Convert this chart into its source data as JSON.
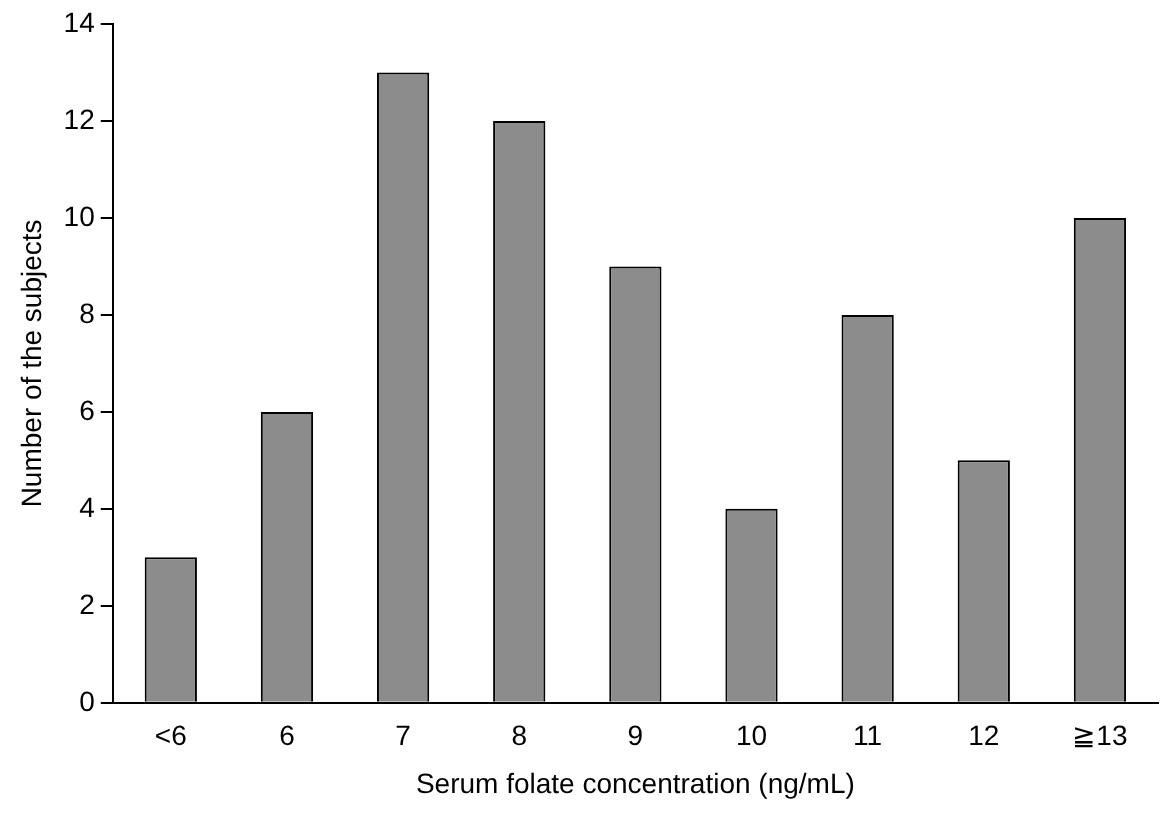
{
  "chart_data": {
    "type": "bar",
    "xlabel": "Serum folate concentration (ng/mL)",
    "ylabel": "Number of the subjects",
    "categories": [
      "<6",
      "6",
      "7",
      "8",
      "9",
      "10",
      "11",
      "12",
      "≧13"
    ],
    "values": [
      3,
      6,
      13,
      12,
      9,
      4,
      8,
      5,
      10
    ],
    "color": "#8c8c8c",
    "ylim": [
      0,
      14
    ],
    "yticks": [
      0,
      2,
      4,
      6,
      8,
      10,
      12,
      14
    ],
    "grid": false,
    "legend": false
  }
}
